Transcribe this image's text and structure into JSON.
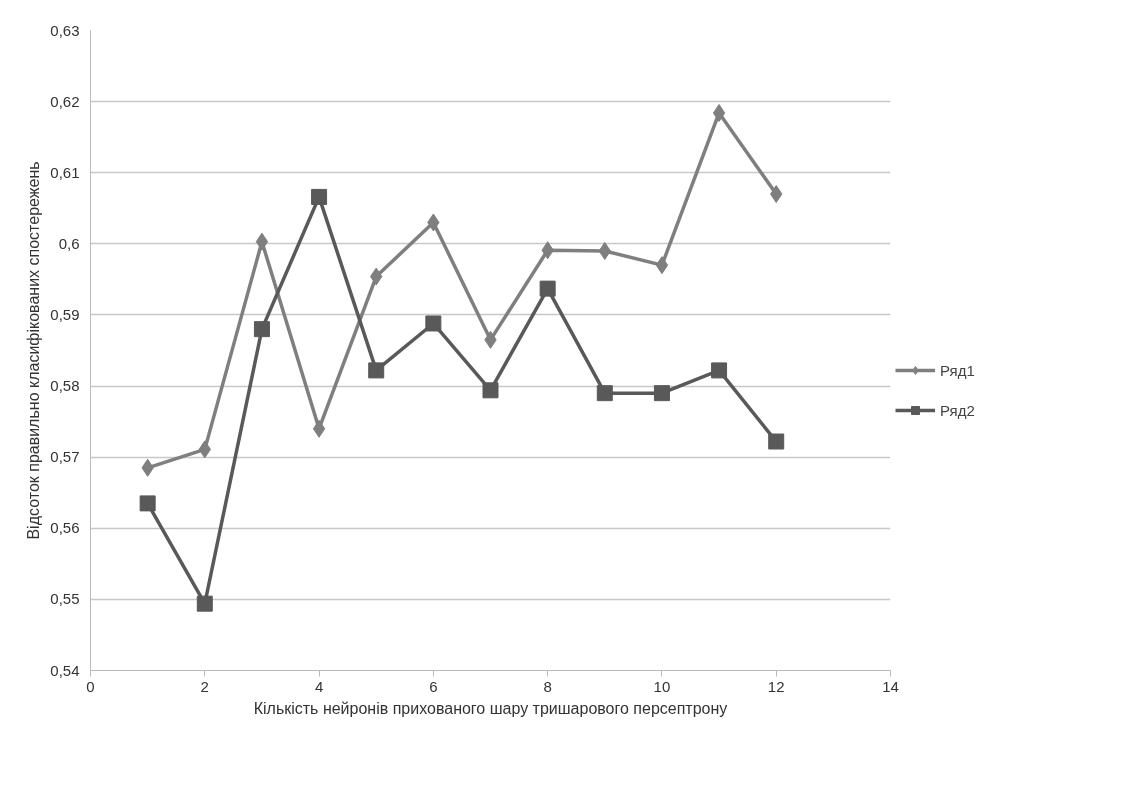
{
  "chart_data": {
    "type": "line",
    "xlabel": "Кількість нейронів прихованого шару тришарового персептрону",
    "ylabel": "Відсоток правильно класифікованих спостережень",
    "x": [
      1,
      2,
      3,
      4,
      5,
      6,
      7,
      8,
      9,
      10,
      11,
      12
    ],
    "series": [
      {
        "name": "Ряд1",
        "color": "#7f7f7f",
        "marker": "diamond",
        "values": [
          0.5685,
          0.5711,
          0.6003,
          0.574,
          0.5954,
          0.603,
          0.5865,
          0.5991,
          0.599,
          0.597,
          0.6184,
          0.607
        ]
      },
      {
        "name": "Ряд2",
        "color": "#595959",
        "marker": "square",
        "values": [
          0.5635,
          0.5494,
          0.588,
          0.6066,
          0.5822,
          0.5888,
          0.5794,
          0.5937,
          0.579,
          0.579,
          0.5822,
          0.5722
        ]
      }
    ],
    "xlim": [
      0,
      14
    ],
    "xticks": [
      0,
      2,
      4,
      6,
      8,
      10,
      12,
      14
    ],
    "ylim": [
      0.54,
      0.63
    ],
    "yticks": [
      {
        "value": 0.54,
        "label": "0,54"
      },
      {
        "value": 0.55,
        "label": "0,55"
      },
      {
        "value": 0.56,
        "label": "0,56"
      },
      {
        "value": 0.57,
        "label": "0,57"
      },
      {
        "value": 0.58,
        "label": "0,58"
      },
      {
        "value": 0.59,
        "label": "0,59"
      },
      {
        "value": 0.6,
        "label": "0,6"
      },
      {
        "value": 0.61,
        "label": "0,61"
      },
      {
        "value": 0.62,
        "label": "0,62"
      },
      {
        "value": 0.63,
        "label": "0,63"
      }
    ],
    "grid": "y",
    "legend": "right",
    "line_style": "solid"
  }
}
